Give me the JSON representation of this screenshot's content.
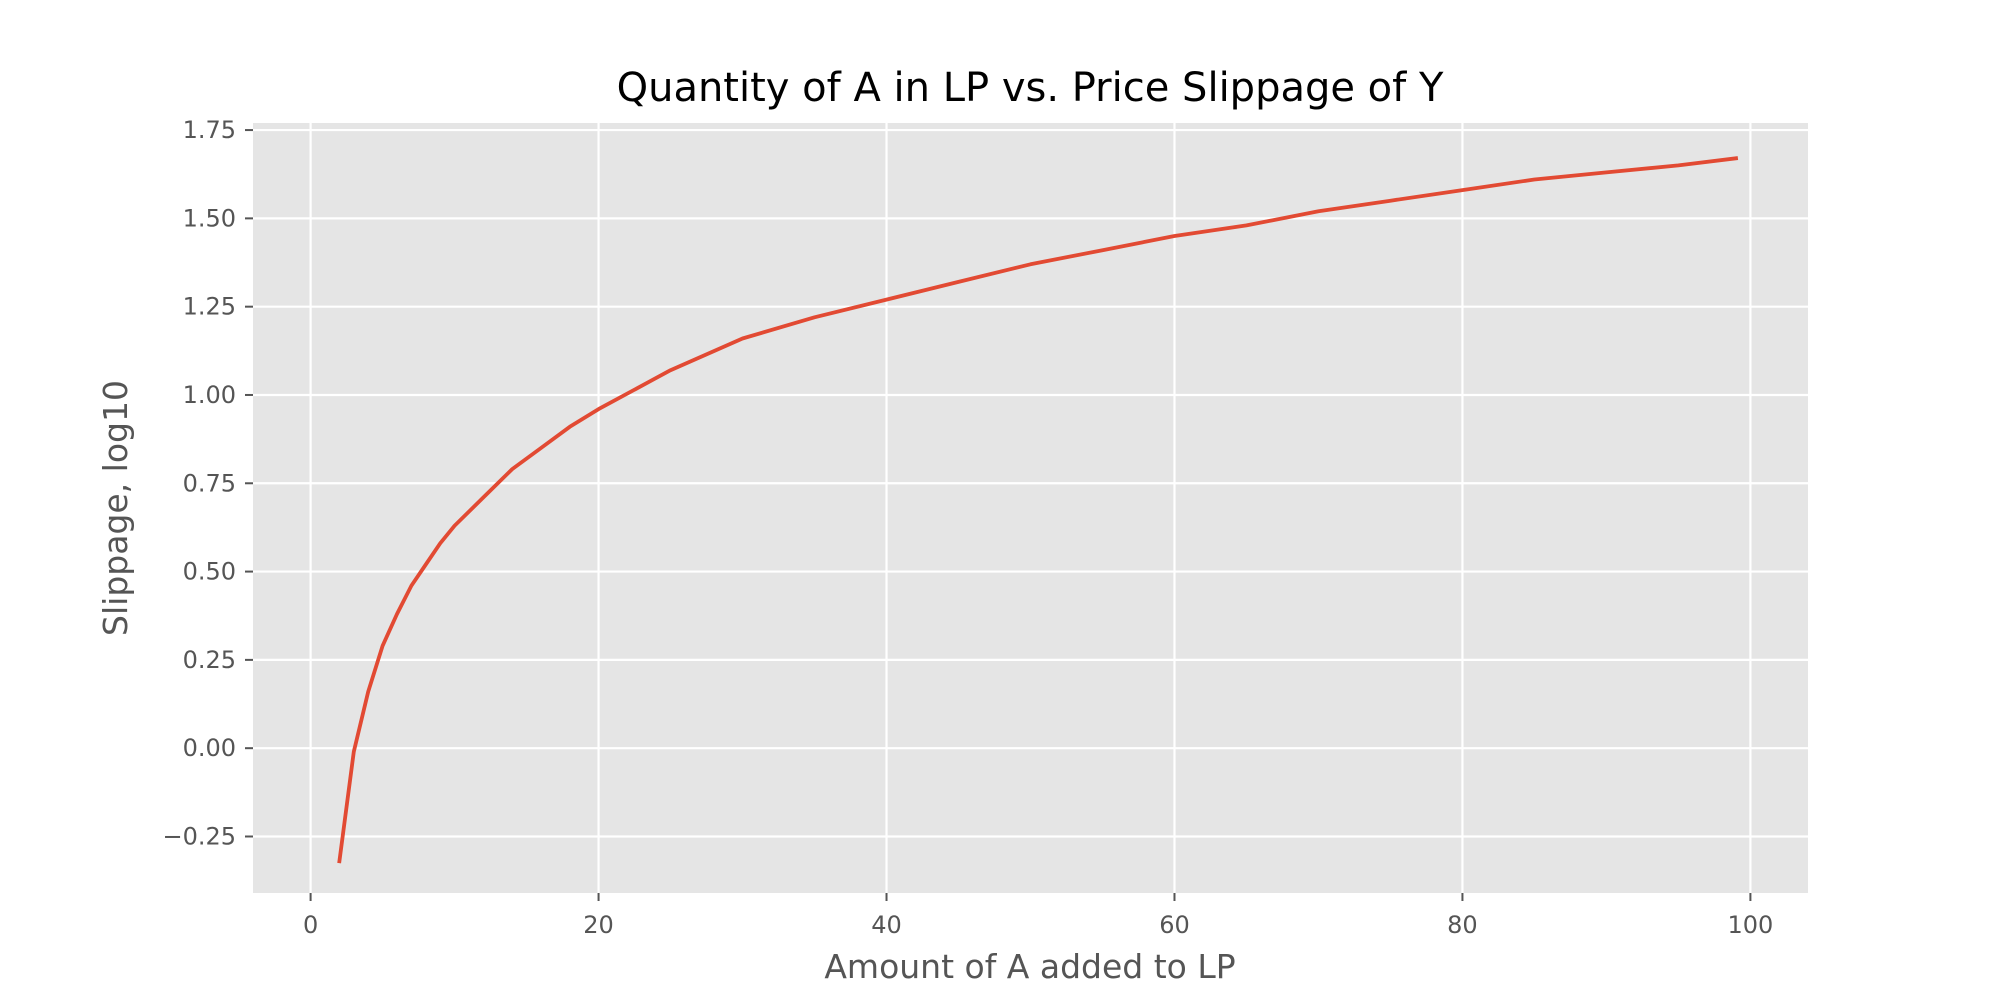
{
  "chart_data": {
    "type": "line",
    "title": "Quantity of A in LP vs. Price Slippage of Y",
    "xlabel": "Amount of A added to LP",
    "ylabel": "Slippage, log10",
    "xlim": [
      -4,
      104
    ],
    "ylim": [
      -0.41,
      1.77
    ],
    "x_ticks": [
      0,
      20,
      40,
      60,
      80,
      100
    ],
    "x_tick_labels": [
      "0",
      "20",
      "40",
      "60",
      "80",
      "100"
    ],
    "y_ticks": [
      -0.25,
      0,
      0.25,
      0.5,
      0.75,
      1.0,
      1.25,
      1.5,
      1.75
    ],
    "y_tick_labels": [
      "−0.25",
      "0.00",
      "0.25",
      "0.50",
      "0.75",
      "1.00",
      "1.25",
      "1.50",
      "1.75"
    ],
    "grid": true,
    "series": [
      {
        "color": "#E24A33",
        "x": [
          2,
          3,
          4,
          5,
          6,
          7,
          8,
          9,
          10,
          12,
          14,
          16,
          18,
          20,
          25,
          30,
          35,
          40,
          45,
          50,
          55,
          60,
          65,
          70,
          75,
          80,
          85,
          90,
          95,
          99
        ],
        "y": [
          -0.32,
          -0.01,
          0.16,
          0.29,
          0.38,
          0.46,
          0.52,
          0.58,
          0.63,
          0.71,
          0.79,
          0.85,
          0.91,
          0.96,
          1.07,
          1.16,
          1.22,
          1.27,
          1.32,
          1.37,
          1.41,
          1.45,
          1.48,
          1.52,
          1.55,
          1.58,
          1.61,
          1.63,
          1.65,
          1.67
        ]
      }
    ],
    "colors": {
      "plot_background": "#E5E5E5",
      "grid": "#FFFFFF",
      "tick_text": "#555555",
      "title_text": "#000000"
    }
  }
}
